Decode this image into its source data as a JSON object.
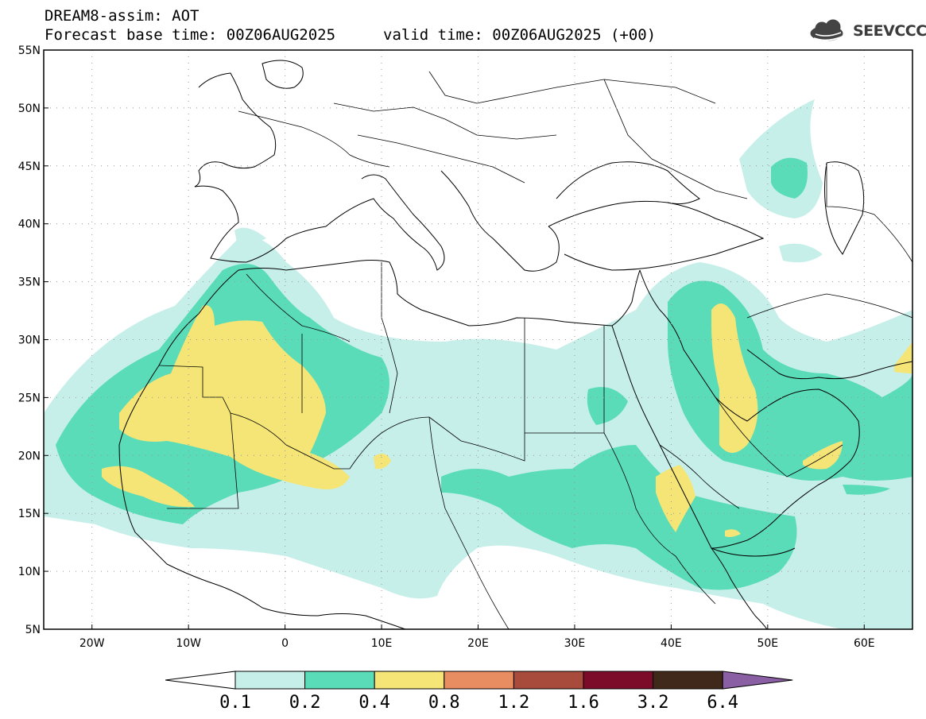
{
  "header": {
    "title": "DREAM8-assim: AOT",
    "base_time": "Forecast base time: 00Z06AUG2025",
    "valid_time": "valid time: 00Z06AUG2025 (+00)",
    "logo_text": "SEEVCCC"
  },
  "map": {
    "lon_range": [
      -25,
      65
    ],
    "lat_range": [
      5,
      55
    ],
    "lat_ticks": [
      "55N",
      "50N",
      "45N",
      "40N",
      "35N",
      "30N",
      "25N",
      "20N",
      "15N",
      "10N",
      "5N"
    ],
    "lon_ticks": [
      "20W",
      "10W",
      "0",
      "10E",
      "20E",
      "30E",
      "40E",
      "50E",
      "60E"
    ],
    "lat_values": [
      55,
      50,
      45,
      40,
      35,
      30,
      25,
      20,
      15,
      10,
      5
    ],
    "lon_values": [
      -20,
      -10,
      0,
      10,
      20,
      30,
      40,
      50,
      60
    ]
  },
  "legend": {
    "labels": [
      "0.1",
      "0.2",
      "0.4",
      "0.8",
      "1.2",
      "1.6",
      "3.2",
      "6.4"
    ],
    "colors": [
      "#ffffff",
      "#c7efea",
      "#5bdcb8",
      "#f4e576",
      "#e88c62",
      "#a84a3c",
      "#7c0b2a",
      "#40291a",
      "#8a5fa3"
    ]
  },
  "colors": {
    "c01": "#c7efea",
    "c02": "#5bdcb8",
    "c04": "#f4e576",
    "border": "#000000"
  }
}
